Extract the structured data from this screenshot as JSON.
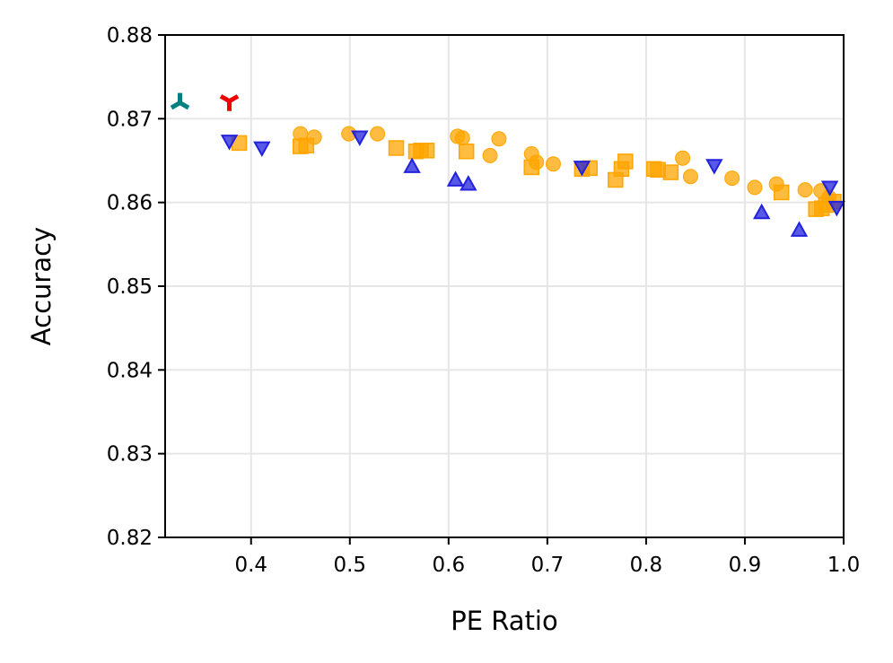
{
  "chart_data": {
    "type": "scatter",
    "title": "",
    "xlabel": "PE Ratio",
    "ylabel": "Accuracy",
    "xlim": [
      0.313,
      1.0
    ],
    "ylim": [
      0.82,
      0.88
    ],
    "grid": true,
    "x_ticks": [
      0.4,
      0.5,
      0.6,
      0.7,
      0.8,
      0.9,
      1.0
    ],
    "x_tick_labels": [
      "0.4",
      "0.5",
      "0.6",
      "0.7",
      "0.8",
      "0.9",
      "1.0"
    ],
    "y_ticks": [
      0.82,
      0.83,
      0.84,
      0.85,
      0.86,
      0.87,
      0.88
    ],
    "y_tick_labels": [
      "0.82",
      "0.83",
      "0.84",
      "0.85",
      "0.86",
      "0.87",
      "0.88"
    ],
    "series": [
      {
        "marker": "circle",
        "color": "#FFA500",
        "points": [
          [
            0.45,
            0.8682
          ],
          [
            0.464,
            0.8678
          ],
          [
            0.499,
            0.8682
          ],
          [
            0.528,
            0.8682
          ],
          [
            0.609,
            0.8679
          ],
          [
            0.614,
            0.8677
          ],
          [
            0.642,
            0.8656
          ],
          [
            0.651,
            0.8676
          ],
          [
            0.684,
            0.8658
          ],
          [
            0.689,
            0.8648
          ],
          [
            0.706,
            0.8646
          ],
          [
            0.837,
            0.8653
          ],
          [
            0.845,
            0.8631
          ],
          [
            0.887,
            0.8629
          ],
          [
            0.91,
            0.8618
          ],
          [
            0.932,
            0.8622
          ],
          [
            0.961,
            0.8615
          ],
          [
            0.977,
            0.8614
          ],
          [
            0.985,
            0.8606
          ]
        ]
      },
      {
        "marker": "square",
        "color": "#FFA500",
        "points": [
          [
            0.388,
            0.8671
          ],
          [
            0.45,
            0.8667
          ],
          [
            0.456,
            0.8668
          ],
          [
            0.547,
            0.8665
          ],
          [
            0.567,
            0.8661
          ],
          [
            0.572,
            0.8662
          ],
          [
            0.578,
            0.8662
          ],
          [
            0.618,
            0.8661
          ],
          [
            0.684,
            0.8642
          ],
          [
            0.735,
            0.864
          ],
          [
            0.743,
            0.8641
          ],
          [
            0.769,
            0.8627
          ],
          [
            0.775,
            0.864
          ],
          [
            0.779,
            0.8649
          ],
          [
            0.808,
            0.864
          ],
          [
            0.812,
            0.8639
          ],
          [
            0.825,
            0.8636
          ],
          [
            0.937,
            0.8612
          ],
          [
            0.972,
            0.8592
          ],
          [
            0.978,
            0.8593
          ],
          [
            0.982,
            0.8597
          ],
          [
            0.99,
            0.8601
          ]
        ]
      },
      {
        "marker": "triangle-down",
        "color": "#2222DD",
        "points": [
          [
            0.378,
            0.8673
          ],
          [
            0.411,
            0.8665
          ],
          [
            0.51,
            0.8678
          ],
          [
            0.735,
            0.8642
          ],
          [
            0.869,
            0.8644
          ],
          [
            0.986,
            0.8618
          ],
          [
            0.993,
            0.8594
          ]
        ]
      },
      {
        "marker": "triangle-up",
        "color": "#2222DD",
        "points": [
          [
            0.563,
            0.8643
          ],
          [
            0.607,
            0.8627
          ],
          [
            0.62,
            0.8622
          ],
          [
            0.917,
            0.8588
          ],
          [
            0.955,
            0.8567
          ]
        ]
      },
      {
        "marker": "tri-up",
        "color": "#008080",
        "points": [
          [
            0.328,
            0.8719
          ]
        ]
      },
      {
        "marker": "tri-down",
        "color": "#EE0000",
        "points": [
          [
            0.378,
            0.8721
          ]
        ]
      }
    ]
  }
}
